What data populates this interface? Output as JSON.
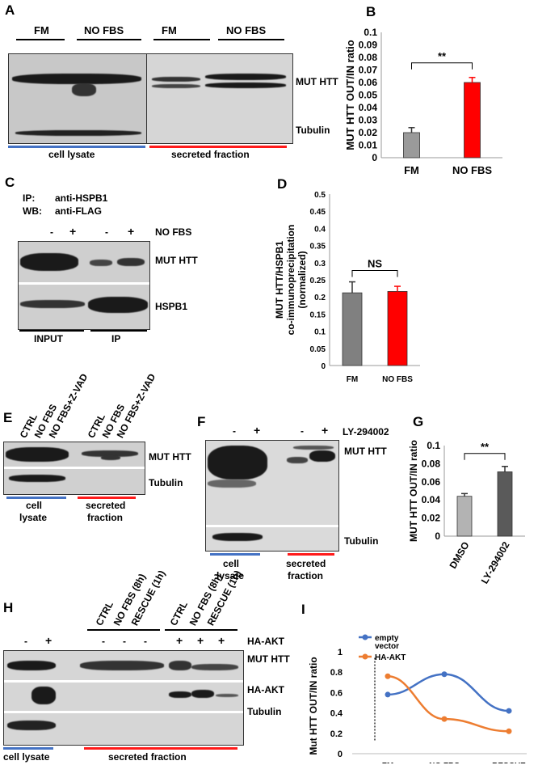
{
  "panels": {
    "A": {
      "letter": "A",
      "groups": [
        "FM",
        "NO FBS",
        "FM",
        "NO FBS"
      ],
      "bands": [
        "MUT HTT",
        "Tubulin"
      ],
      "fractions": [
        "cell lysate",
        "secreted fraction"
      ]
    },
    "C": {
      "letter": "C",
      "ip": "IP:",
      "ip_ab": "anti-HSPB1",
      "wb": "WB:",
      "wb_ab": "anti-FLAG",
      "treatment": "NO FBS",
      "signs": [
        "-",
        "+",
        "-",
        "+"
      ],
      "bands": [
        "MUT HTT",
        "HSPB1"
      ],
      "fractions": [
        "INPUT",
        "IP"
      ]
    },
    "E": {
      "letter": "E",
      "lanes": [
        "CTRL",
        "NO FBS",
        "NO FBS+Z-VAD",
        "CTRL",
        "NO FBS",
        "NO FBS+Z-VAD"
      ],
      "bands": [
        "MUT HTT",
        "Tubulin"
      ],
      "fraction_a": [
        "cell",
        "lysate"
      ],
      "fraction_b": [
        "secreted",
        "fraction"
      ]
    },
    "F": {
      "letter": "F",
      "treatment": "LY-294002",
      "signs": [
        "-",
        "+",
        "-",
        "+"
      ],
      "bands": [
        "MUT HTT",
        "Tubulin"
      ],
      "fraction_a": [
        "cell",
        "lysate"
      ],
      "fraction_b": [
        "secreted",
        "fraction"
      ]
    },
    "H": {
      "letter": "H",
      "lanes": [
        "CTRL",
        "NO FBS (8h)",
        "RESCUE (1h)",
        "CTRL",
        "NO FBS (8h)",
        "RESCUE (1h)"
      ],
      "treatment": "HA-AKT",
      "signs": [
        "-",
        "+",
        "-",
        "-",
        "-",
        "+",
        "+",
        "+"
      ],
      "bands": [
        "MUT HTT",
        "HA-AKT",
        "Tubulin"
      ],
      "fractions": [
        "cell lysate",
        "secreted fraction"
      ]
    },
    "B": {
      "letter": "B"
    },
    "D": {
      "letter": "D"
    },
    "G": {
      "letter": "G"
    },
    "I": {
      "letter": "I"
    }
  },
  "chart_data": [
    {
      "id": "B",
      "type": "bar",
      "categories": [
        "FM",
        "NO FBS"
      ],
      "values": [
        0.02,
        0.06
      ],
      "errors": [
        0.004,
        0.004
      ],
      "colors": [
        "#9a9a9a",
        "#ff0000"
      ],
      "ylabel": "MUT HTT OUT/IN ratio",
      "ylim": [
        0,
        0.1
      ],
      "yticks": [
        "0",
        "0.01",
        "0.02",
        "0.03",
        "0.04",
        "0.05",
        "0.06",
        "0.07",
        "0.08",
        "0.09",
        "0.1"
      ],
      "significance": "**"
    },
    {
      "id": "D",
      "type": "bar",
      "categories": [
        "FM",
        "NO FBS"
      ],
      "values": [
        0.212,
        0.216
      ],
      "errors": [
        0.032,
        0.015
      ],
      "colors": [
        "#808080",
        "#ff0000"
      ],
      "ylabel_lines": [
        "MUT HTT/HSPB1",
        "co-immunoprecipitation",
        "(normalized)"
      ],
      "ylim": [
        0,
        0.5
      ],
      "yticks": [
        "0",
        "0.05",
        "0.1",
        "0.15",
        "0.2",
        "0.25",
        "0.3",
        "0.35",
        "0.4",
        "0.45",
        "0.5"
      ],
      "significance": "NS"
    },
    {
      "id": "G",
      "type": "bar",
      "categories": [
        "DMSO",
        "LY-294002"
      ],
      "values": [
        0.044,
        0.071
      ],
      "errors": [
        0.003,
        0.006
      ],
      "colors": [
        "#b3b3b3",
        "#5a5a5a"
      ],
      "ylabel": "MUT HTT OUT/IN ratio",
      "ylim": [
        0,
        0.1
      ],
      "yticks": [
        "0",
        "0.02",
        "0.04",
        "0.06",
        "0.08",
        "0.1"
      ],
      "significance": "**"
    },
    {
      "id": "I",
      "type": "line",
      "categories": [
        "FM",
        "NO FBS",
        "RESCUE"
      ],
      "series": [
        {
          "name": "empty vector",
          "values": [
            0.58,
            0.78,
            0.42
          ],
          "color": "#4472c4"
        },
        {
          "name": "HA-AKT",
          "values": [
            0.76,
            0.34,
            0.22
          ],
          "color": "#ed7d31"
        }
      ],
      "ylabel": "Mut HTT OUT/IN ratio",
      "ylim": [
        0,
        1
      ],
      "yticks": [
        "0",
        "0.2",
        "0.4",
        "0.6",
        "0.8",
        "1"
      ]
    }
  ]
}
